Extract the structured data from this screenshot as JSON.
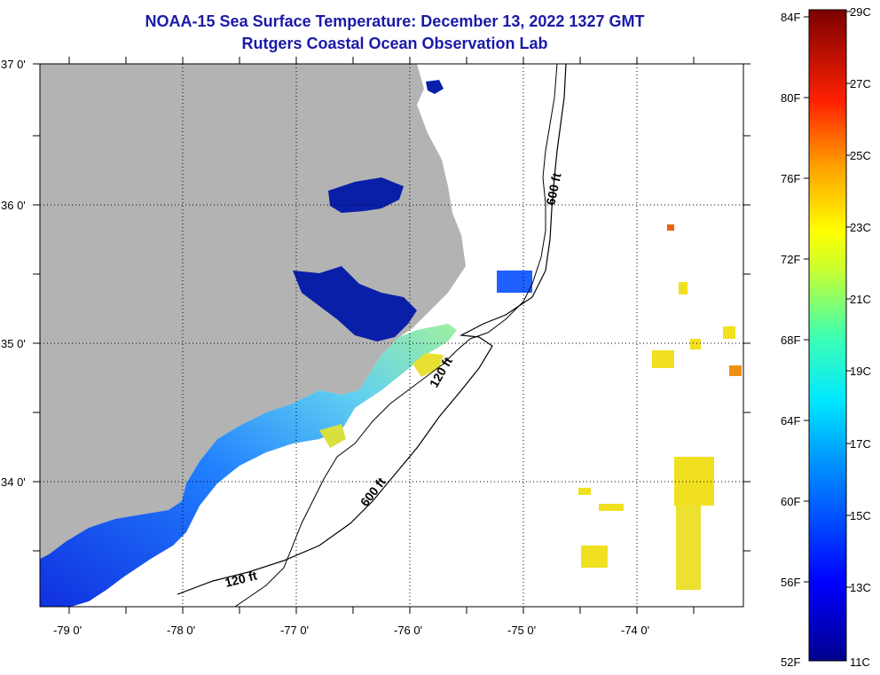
{
  "title": "NOAA-15 Sea Surface Temperature:  December 13, 2022 1327 GMT",
  "subtitle": "Rutgers Coastal Ocean Observation Lab",
  "map": {
    "lat_labels": [
      "37 0'",
      "36 0'",
      "35 0'",
      "34 0'"
    ],
    "lon_labels": [
      "-79 0'",
      "-78 0'",
      "-77 0'",
      "-76 0'",
      "-75 0'",
      "-74 0'"
    ],
    "isobath_labels": [
      "600 ft",
      "120 ft",
      "600 ft",
      "120 ft"
    ]
  },
  "colorbar": {
    "fahrenheit_labels": [
      "84F",
      "80F",
      "76F",
      "72F",
      "68F",
      "64F",
      "60F",
      "56F",
      "52F"
    ],
    "celsius_labels": [
      "29C",
      "27C",
      "25C",
      "23C",
      "21C",
      "19C",
      "17C",
      "15C",
      "13C",
      "11C"
    ]
  },
  "colors": {
    "title": "#1a1aa8",
    "land": "#b3b3b3",
    "ocean": "#ffffff"
  }
}
